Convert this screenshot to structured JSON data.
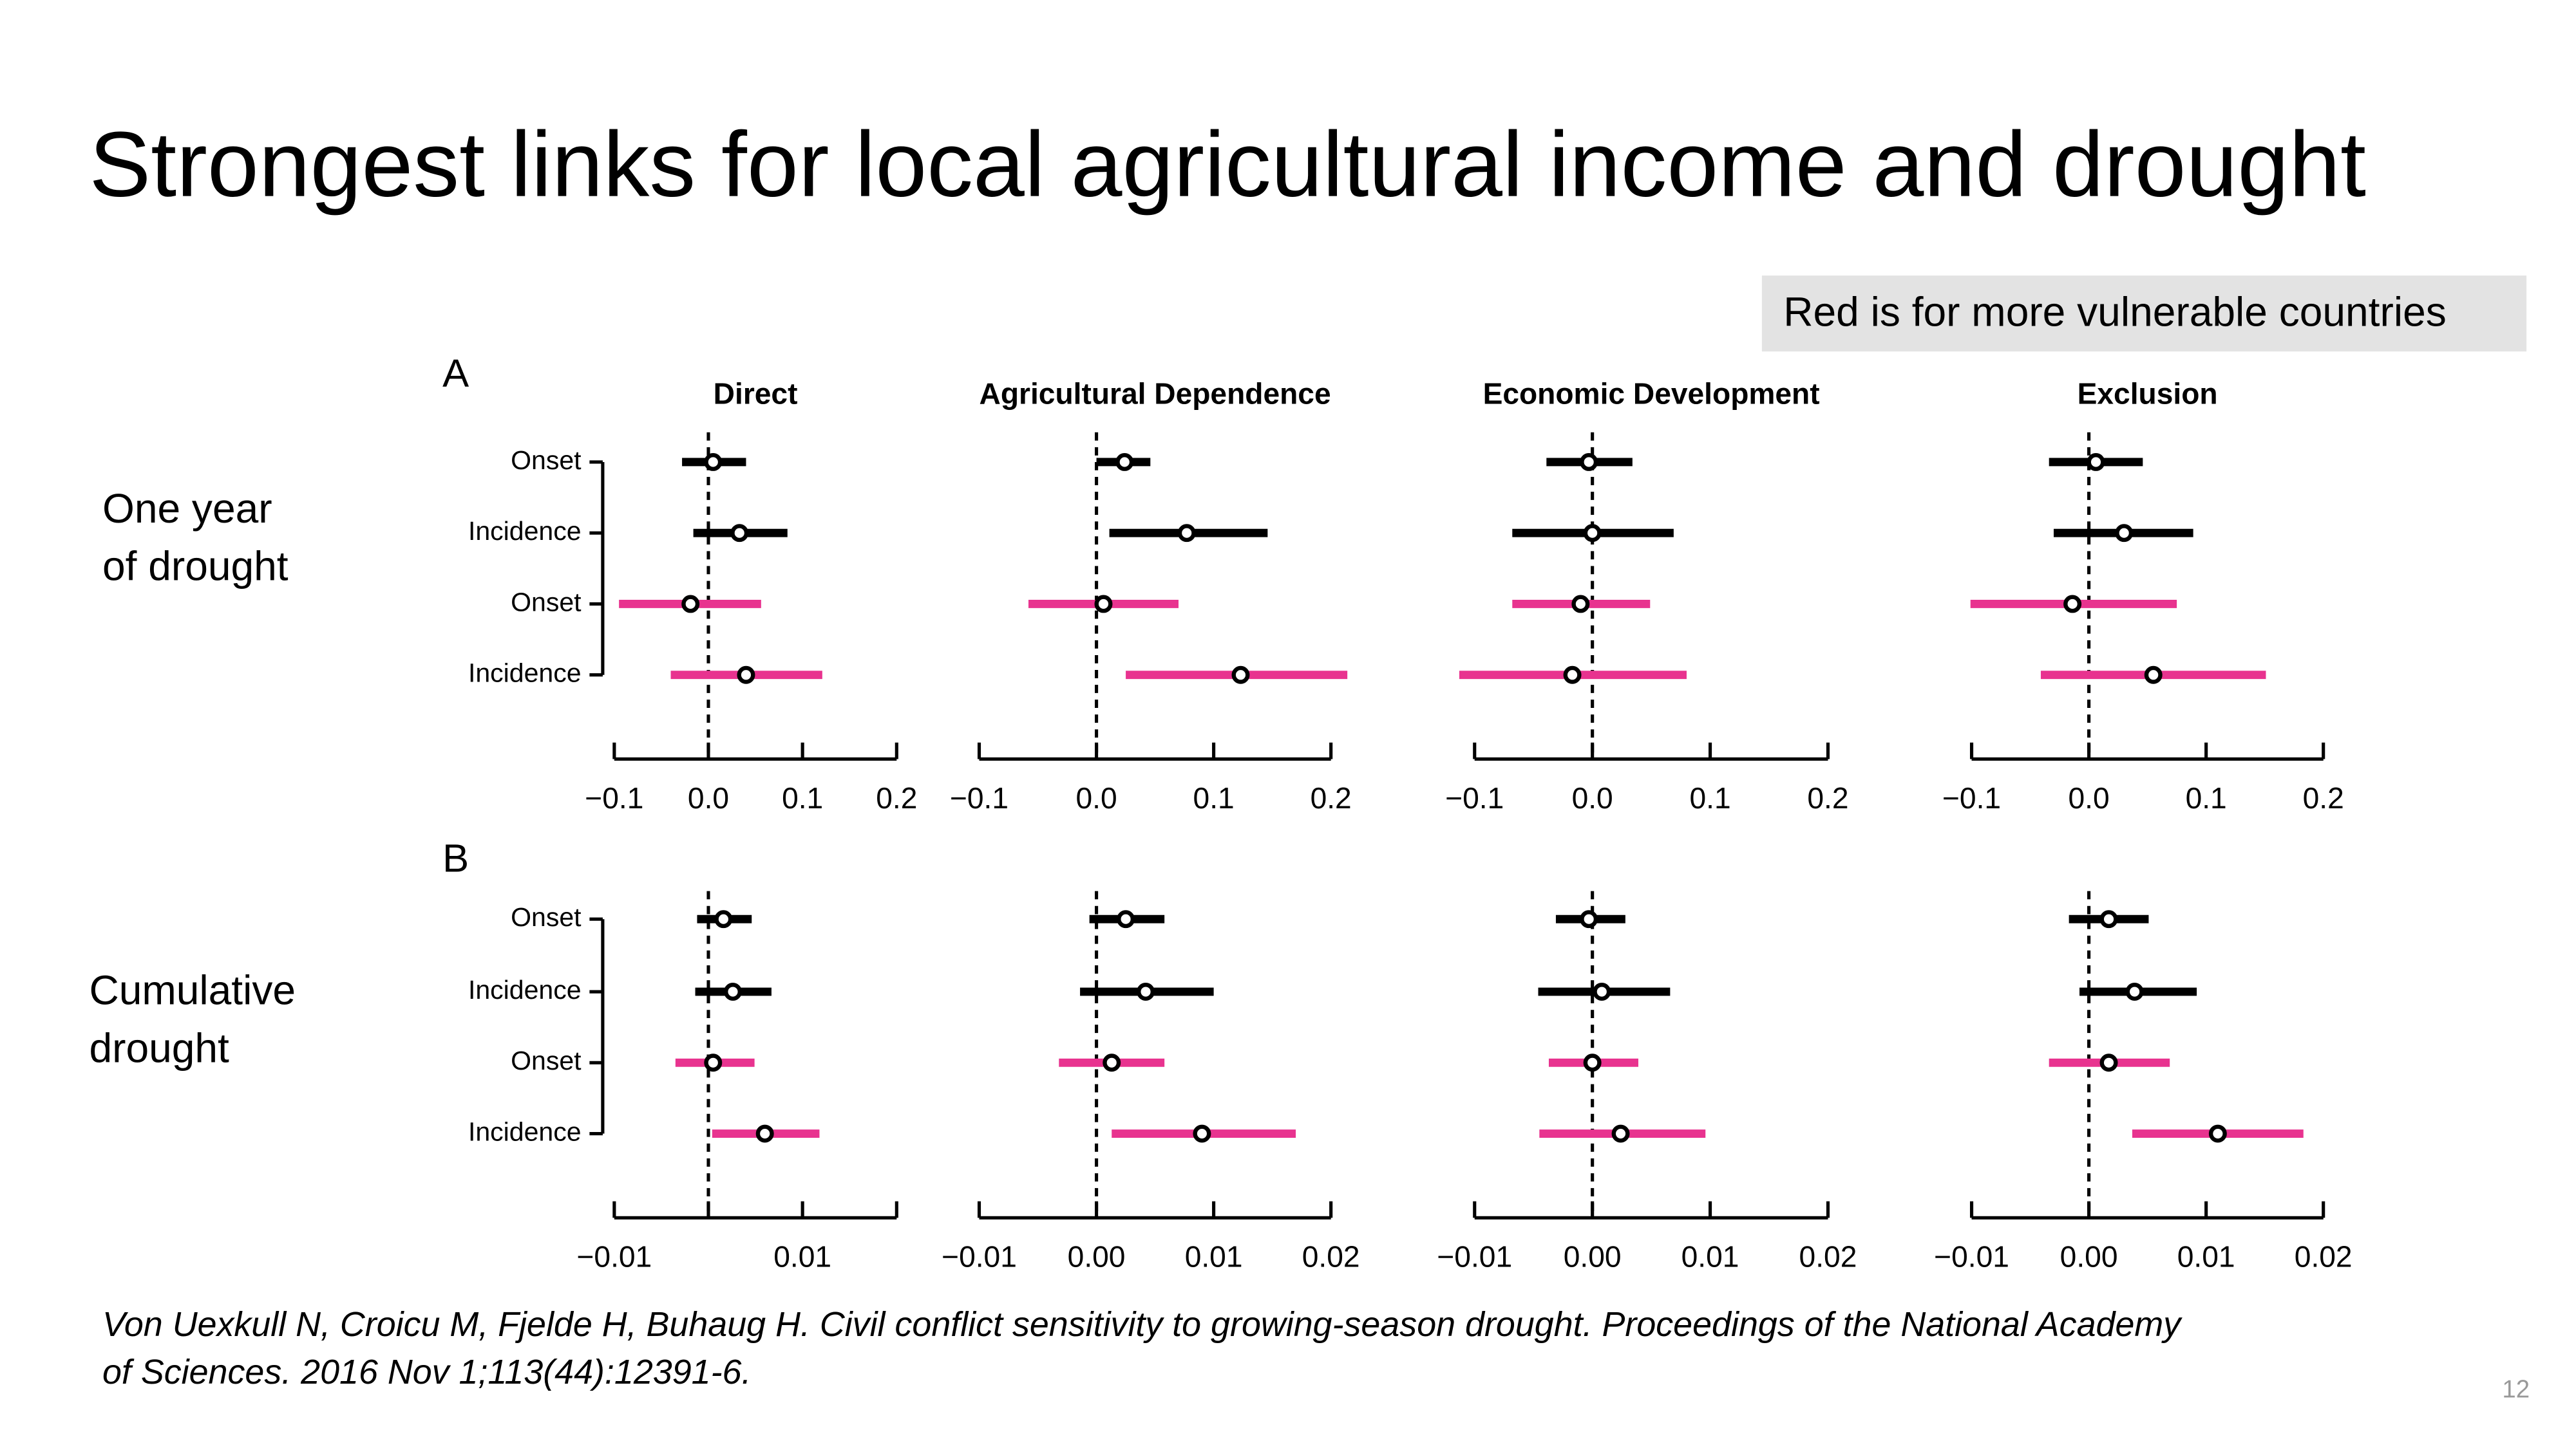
{
  "title": "Strongest links for local agricultural income and drought",
  "note": "Red is for more vulnerable countries",
  "row_labels": [
    [
      "One year",
      "of drought"
    ],
    [
      "Cumulative",
      "drought"
    ]
  ],
  "citation": [
    "Von Uexkull N, Croicu M, Fjelde H, Buhaug H. Civil conflict sensitivity to growing-season drought. Proceedings of the National Academy",
    "of Sciences. 2016 Nov 1;113(44):12391-6."
  ],
  "page_number": "12",
  "chart_data": [
    {
      "type": "forest",
      "panel_label": "A",
      "title": "Direct",
      "categories": [
        "Onset",
        "Incidence",
        "Onset",
        "Incidence"
      ],
      "values": [
        0.005,
        0.033,
        -0.019,
        0.04
      ],
      "lower": [
        -0.028,
        -0.016,
        -0.095,
        -0.04
      ],
      "upper": [
        0.04,
        0.084,
        0.056,
        0.121
      ],
      "colors": [
        "#000000",
        "#000000",
        "#e8338f",
        "#e8338f"
      ],
      "ref_line": 0,
      "xlim": [
        -0.1,
        0.2
      ],
      "xticks": [
        {
          "value": -0.1,
          "label": "−0.1"
        },
        {
          "value": 0,
          "label": "0.0"
        },
        0.1,
        0.2
      ]
    },
    {
      "type": "forest",
      "title": "Agricultural Dependence",
      "values": [
        0.024,
        0.077,
        0.006,
        0.123
      ],
      "lower": [
        0.0,
        0.011,
        -0.058,
        0.025
      ],
      "upper": [
        0.046,
        0.146,
        0.07,
        0.214
      ],
      "colors": [
        "#000000",
        "#000000",
        "#e8338f",
        "#e8338f"
      ],
      "ref_line": 0,
      "xlim": [
        -0.1,
        0.2
      ],
      "xticks": [
        {
          "value": -0.1,
          "label": "−0.1"
        },
        {
          "value": 0,
          "label": "0.0"
        },
        0.1,
        0.2
      ]
    },
    {
      "type": "forest",
      "title": "Economic Development",
      "values": [
        -0.003,
        0.0,
        -0.01,
        -0.017
      ],
      "lower": [
        -0.039,
        -0.068,
        -0.068,
        -0.113
      ],
      "upper": [
        0.034,
        0.069,
        0.049,
        0.08
      ],
      "colors": [
        "#000000",
        "#000000",
        "#e8338f",
        "#e8338f"
      ],
      "ref_line": 0,
      "xlim": [
        -0.1,
        0.2
      ],
      "xticks": [
        {
          "value": -0.1,
          "label": "−0.1"
        },
        {
          "value": 0,
          "label": "0.0"
        },
        0.1,
        0.2
      ]
    },
    {
      "type": "forest",
      "title": "Exclusion",
      "values": [
        0.006,
        0.03,
        -0.014,
        0.055
      ],
      "lower": [
        -0.034,
        -0.03,
        -0.101,
        -0.041
      ],
      "upper": [
        0.046,
        0.089,
        0.075,
        0.151
      ],
      "colors": [
        "#000000",
        "#000000",
        "#e8338f",
        "#e8338f"
      ],
      "ref_line": 0,
      "xlim": [
        -0.1,
        0.2
      ],
      "xticks": [
        {
          "value": -0.1,
          "label": "−0.1"
        },
        {
          "value": 0,
          "label": "0.0"
        },
        0.1,
        0.2
      ]
    },
    {
      "type": "forest",
      "panel_label": "B",
      "categories": [
        "Onset",
        "Incidence",
        "Onset",
        "Incidence"
      ],
      "values": [
        0.0016,
        0.0026,
        0.0005,
        0.006
      ],
      "lower": [
        -0.0012,
        -0.0014,
        -0.0035,
        0.0004
      ],
      "upper": [
        0.0046,
        0.0067,
        0.0049,
        0.0118
      ],
      "colors": [
        "#000000",
        "#000000",
        "#e8338f",
        "#e8338f"
      ],
      "ref_line": 0,
      "xlim": [
        -0.01,
        0.02
      ],
      "xticks": [
        {
          "value": -0.01,
          "label": "−0.01"
        },
        {
          "value": 0,
          "label": null
        },
        0.01,
        {
          "value": 0.02,
          "label": null
        }
      ]
    },
    {
      "type": "forest",
      "values": [
        0.0025,
        0.0042,
        0.0013,
        0.009
      ],
      "lower": [
        -0.0006,
        -0.0014,
        -0.0032,
        0.0013
      ],
      "upper": [
        0.0058,
        0.01,
        0.0058,
        0.017
      ],
      "colors": [
        "#000000",
        "#000000",
        "#e8338f",
        "#e8338f"
      ],
      "ref_line": 0,
      "xlim": [
        -0.01,
        0.02
      ],
      "xticks": [
        {
          "value": -0.01,
          "label": "−0.01"
        },
        {
          "value": 0,
          "label": "0.00"
        },
        0.01,
        0.02
      ]
    },
    {
      "type": "forest",
      "values": [
        -0.0003,
        0.0008,
        0.0,
        0.0024
      ],
      "lower": [
        -0.0031,
        -0.0046,
        -0.0037,
        -0.0045
      ],
      "upper": [
        0.0028,
        0.0066,
        0.0039,
        0.0096
      ],
      "colors": [
        "#000000",
        "#000000",
        "#e8338f",
        "#e8338f"
      ],
      "ref_line": 0,
      "xlim": [
        -0.01,
        0.02
      ],
      "xticks": [
        {
          "value": -0.01,
          "label": "−0.01"
        },
        {
          "value": 0,
          "label": "0.00"
        },
        0.01,
        0.02
      ]
    },
    {
      "type": "forest",
      "values": [
        0.0017,
        0.0039,
        0.0017,
        0.011
      ],
      "lower": [
        -0.0017,
        -0.0008,
        -0.0034,
        0.0037
      ],
      "upper": [
        0.0051,
        0.0092,
        0.0069,
        0.0183
      ],
      "colors": [
        "#000000",
        "#000000",
        "#e8338f",
        "#e8338f"
      ],
      "ref_line": 0,
      "xlim": [
        -0.01,
        0.02
      ],
      "xticks": [
        {
          "value": -0.01,
          "label": "−0.01"
        },
        {
          "value": 0,
          "label": "0.00"
        },
        0.01,
        0.02
      ]
    }
  ]
}
